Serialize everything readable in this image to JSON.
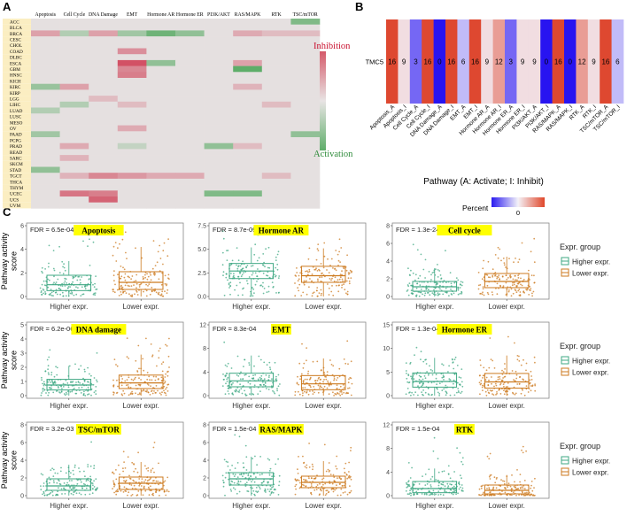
{
  "panel_labels": {
    "a": "A",
    "b": "B",
    "c": "C"
  },
  "colors": {
    "inhibition": "#c8102e",
    "activation": "#2e8b3a",
    "higher": "#3fa883",
    "lower": "#cc7a1f",
    "fdr_highlight": "#ffff00",
    "cancer_label_bg": "#fbeec2"
  },
  "chart_data": [
    {
      "type": "heatmap",
      "panel": "A",
      "columns": [
        "Apoptosis",
        "Cell Cycle",
        "DNA Damage",
        "EMT",
        "Hormone AR",
        "Hormone ER",
        "PI3K/AKT",
        "RAS/MAPK",
        "RTK",
        "TSC/mTOR"
      ],
      "rows": [
        "ACC",
        "BLCA",
        "BRCA",
        "CESC",
        "CHOL",
        "COAD",
        "DLBC",
        "ESCA",
        "GBM",
        "HNSC",
        "KICH",
        "KIRC",
        "KIRP",
        "LGG",
        "LIHC",
        "LUAD",
        "LUSC",
        "MESO",
        "OV",
        "PAAD",
        "PCPG",
        "PRAD",
        "READ",
        "SARC",
        "SKCM",
        "STAD",
        "TGCT",
        "THCA",
        "THYM",
        "UCEC",
        "UCS",
        "UVM"
      ],
      "values_scale": "-1 = activation, 0 = none, 1 = inhibition",
      "values": [
        [
          0,
          0,
          0,
          0,
          0,
          0,
          0,
          0,
          0,
          -0.6
        ],
        [
          0,
          0,
          0,
          0,
          0,
          0,
          0,
          0,
          0,
          0
        ],
        [
          0.35,
          -0.3,
          0.35,
          -0.4,
          -0.7,
          -0.5,
          0,
          0.3,
          0.2,
          0.2
        ],
        [
          0,
          0,
          0,
          0,
          0,
          0,
          0,
          0,
          0,
          0
        ],
        [
          0,
          0,
          0,
          0,
          0,
          0,
          0,
          0,
          0,
          0
        ],
        [
          0,
          0,
          0,
          0.45,
          0,
          0,
          0,
          0,
          0,
          0
        ],
        [
          0,
          0,
          0,
          0,
          0,
          0,
          0,
          0,
          0,
          0
        ],
        [
          0,
          0,
          0,
          0.8,
          -0.5,
          0,
          0,
          0.35,
          0,
          0
        ],
        [
          0,
          0,
          0,
          0.5,
          0,
          0,
          0,
          -0.8,
          0,
          0
        ],
        [
          0,
          0,
          0,
          0.55,
          0,
          0,
          0,
          0,
          0,
          0
        ],
        [
          0,
          0,
          0,
          0,
          0,
          0,
          0,
          0,
          0,
          0
        ],
        [
          -0.45,
          0.35,
          0,
          0,
          0,
          0,
          0,
          0.25,
          0,
          0
        ],
        [
          0,
          0,
          0,
          0,
          0,
          0,
          0,
          0,
          0,
          0
        ],
        [
          0,
          0,
          0.2,
          0,
          0,
          0,
          0,
          0,
          0,
          0
        ],
        [
          0,
          -0.3,
          0,
          0.2,
          0,
          0,
          0,
          0,
          0.2,
          0
        ],
        [
          -0.3,
          0,
          0,
          0,
          0,
          0,
          0,
          0,
          0,
          0
        ],
        [
          0,
          0,
          0,
          0,
          0,
          0,
          0,
          0,
          0,
          0
        ],
        [
          0,
          0,
          0,
          0,
          0,
          0,
          0,
          0,
          0,
          0
        ],
        [
          0,
          0,
          0,
          0.3,
          0,
          0,
          0,
          0,
          0,
          0
        ],
        [
          -0.4,
          0,
          0,
          0,
          0,
          0,
          0,
          0,
          0,
          -0.5
        ],
        [
          0,
          0,
          0,
          0,
          0,
          0,
          0,
          0,
          0,
          0
        ],
        [
          0,
          0.3,
          0,
          -0.2,
          0,
          0,
          -0.5,
          0.2,
          0,
          0
        ],
        [
          0,
          0,
          0,
          0,
          0,
          0,
          0,
          0,
          0,
          0
        ],
        [
          0,
          0.25,
          0,
          0,
          0,
          0,
          0,
          0,
          0,
          0
        ],
        [
          0,
          0,
          0,
          0,
          0,
          0,
          0,
          0,
          0,
          0
        ],
        [
          -0.5,
          0,
          0,
          0,
          0,
          0,
          0,
          0,
          0,
          0
        ],
        [
          0,
          0.25,
          0.5,
          0.4,
          0.3,
          0.3,
          0,
          0,
          0.2,
          0
        ],
        [
          0,
          0,
          0,
          0,
          0,
          0,
          0,
          0,
          0,
          0
        ],
        [
          0,
          0,
          0,
          0,
          0,
          0,
          0,
          0,
          0,
          0
        ],
        [
          0,
          0.6,
          0.55,
          0,
          0,
          0,
          -0.6,
          -0.6,
          0,
          0
        ],
        [
          0,
          0,
          0.7,
          0,
          0,
          0,
          0,
          0,
          0,
          0
        ],
        [
          0,
          0,
          0,
          0,
          0,
          0,
          0,
          0,
          0,
          0
        ]
      ],
      "legend": {
        "top": "Inhibition",
        "bottom": "Activation"
      }
    },
    {
      "type": "heatmap",
      "panel": "B",
      "row_label": "TMC5",
      "categories": [
        "Apoptosis_A",
        "Apoptosis_I",
        "Cell Cycle_A",
        "Cell Cycle_I",
        "DNA Damage_A",
        "DNA Damage_I",
        "EMT_A",
        "EMT_I",
        "Hormone AR_A",
        "Hormone AR_I",
        "Hormone ER_A",
        "Hormone ER_I",
        "PI3K/AKT_A",
        "PI3K/AKT_I",
        "RAS/MAPK_A",
        "RAS/MAPK_I",
        "RTK_A",
        "RTK_I",
        "TSC/mTOR_A",
        "TSC/mTOR_I"
      ],
      "values": [
        16,
        9,
        3,
        16,
        0,
        16,
        6,
        16,
        9,
        12,
        3,
        9,
        9,
        0,
        16,
        0,
        12,
        9,
        16,
        6
      ],
      "cell_labels": [
        "16",
        "9",
        "3",
        "16",
        "0",
        "16",
        "6",
        "16",
        "9",
        "12",
        "3",
        "9",
        "9",
        "0",
        "16",
        "0",
        "12",
        "9",
        "16",
        "6"
      ],
      "xlabel": "Pathway (A: Activate; I: Inhibit)",
      "legend_title": "Percent",
      "legend_tick": "0"
    },
    {
      "type": "box",
      "panel": "C",
      "ylabel": "Pathway activity score",
      "legend_title": "Expr. group",
      "groups": [
        "Higher expr.",
        "Lower expr."
      ],
      "facets": [
        {
          "title": "Apoptosis",
          "fdr": "FDR = 6.5e-04",
          "ylim": [
            0,
            6
          ],
          "yticks": [
            "0",
            "2",
            "4",
            "6"
          ],
          "boxes": [
            {
              "q1": 0.5,
              "med": 1.0,
              "q3": 1.8,
              "lo": 0,
              "hi": 3.0,
              "max": 5.0
            },
            {
              "q1": 0.6,
              "med": 1.2,
              "q3": 2.1,
              "lo": 0,
              "hi": 4.2,
              "max": 5.6
            }
          ]
        },
        {
          "title": "Hormone AR",
          "fdr": "FDR = 8.7e-09",
          "ylim": [
            0,
            7.5
          ],
          "yticks": [
            "0.0",
            "2.5",
            "5.0",
            "7.5"
          ],
          "boxes": [
            {
              "q1": 1.9,
              "med": 2.7,
              "q3": 3.5,
              "lo": 0,
              "hi": 5.2,
              "max": 7.2
            },
            {
              "q1": 1.5,
              "med": 2.2,
              "q3": 3.2,
              "lo": 0,
              "hi": 5.1,
              "max": 7.0
            }
          ]
        },
        {
          "title": "Cell cycle",
          "fdr": "FDR = 1.3e-24",
          "ylim": [
            0,
            8
          ],
          "yticks": [
            "0",
            "2",
            "4",
            "6",
            "8"
          ],
          "boxes": [
            {
              "q1": 0.6,
              "med": 1.1,
              "q3": 1.7,
              "lo": 0,
              "hi": 3.2,
              "max": 6.0
            },
            {
              "q1": 1.0,
              "med": 1.7,
              "q3": 2.6,
              "lo": 0,
              "hi": 4.5,
              "max": 6.8
            }
          ]
        },
        {
          "title": "DNA damage",
          "fdr": "FDR = 6.2e-06",
          "ylim": [
            0,
            5
          ],
          "yticks": [
            "0",
            "1",
            "2",
            "3",
            "4",
            "5"
          ],
          "boxes": [
            {
              "q1": 0.4,
              "med": 0.75,
              "q3": 1.15,
              "lo": 0,
              "hi": 2.1,
              "max": 3.3
            },
            {
              "q1": 0.5,
              "med": 0.9,
              "q3": 1.45,
              "lo": 0,
              "hi": 2.9,
              "max": 4.1
            }
          ]
        },
        {
          "title": "EMT",
          "fdr": "FDR = 8.3e-04",
          "ylim": [
            0,
            12
          ],
          "yticks": [
            "0",
            "4",
            "8",
            "12"
          ],
          "boxes": [
            {
              "q1": 1.5,
              "med": 2.5,
              "q3": 3.8,
              "lo": 0,
              "hi": 6.8,
              "max": 10.5
            },
            {
              "q1": 1.0,
              "med": 2.0,
              "q3": 3.4,
              "lo": 0,
              "hi": 6.3,
              "max": 9.5
            }
          ]
        },
        {
          "title": "Hormone ER",
          "fdr": "FDR = 1.3e-04",
          "ylim": [
            0,
            15
          ],
          "yticks": [
            "0",
            "5",
            "10",
            "15"
          ],
          "boxes": [
            {
              "q1": 1.8,
              "med": 3.0,
              "q3": 4.8,
              "lo": 0,
              "hi": 8.0,
              "max": 12.0
            },
            {
              "q1": 1.6,
              "med": 2.9,
              "q3": 4.7,
              "lo": 0,
              "hi": 8.5,
              "max": 12.5
            }
          ]
        },
        {
          "title": "TSC/mTOR",
          "fdr": "FDR = 3.2e-03",
          "ylim": [
            0,
            8
          ],
          "yticks": [
            "0",
            "2",
            "4",
            "6",
            "8"
          ],
          "boxes": [
            {
              "q1": 0.6,
              "med": 1.1,
              "q3": 1.9,
              "lo": 0,
              "hi": 3.5,
              "max": 6.8
            },
            {
              "q1": 0.7,
              "med": 1.4,
              "q3": 2.1,
              "lo": 0,
              "hi": 3.8,
              "max": 6.6
            }
          ]
        },
        {
          "title": "RAS/MAPK",
          "fdr": "FDR = 1.5e-04",
          "ylim": [
            0,
            8
          ],
          "yticks": [
            "0",
            "2",
            "4",
            "6",
            "8"
          ],
          "boxes": [
            {
              "q1": 1.2,
              "med": 1.9,
              "q3": 2.6,
              "lo": 0,
              "hi": 4.4,
              "max": 7.2
            },
            {
              "q1": 0.9,
              "med": 1.5,
              "q3": 2.2,
              "lo": 0,
              "hi": 3.9,
              "max": 6.2
            }
          ]
        },
        {
          "title": "RTK",
          "fdr": "FDR = 1.5e-04",
          "ylim": [
            0,
            12
          ],
          "yticks": [
            "0",
            "4",
            "8",
            "12"
          ],
          "boxes": [
            {
              "q1": 0.5,
              "med": 1.2,
              "q3": 2.4,
              "lo": 0,
              "hi": 4.6,
              "max": 10.5
            },
            {
              "q1": 0.3,
              "med": 0.9,
              "q3": 1.8,
              "lo": 0,
              "hi": 3.5,
              "max": 9.0
            }
          ]
        }
      ]
    }
  ]
}
